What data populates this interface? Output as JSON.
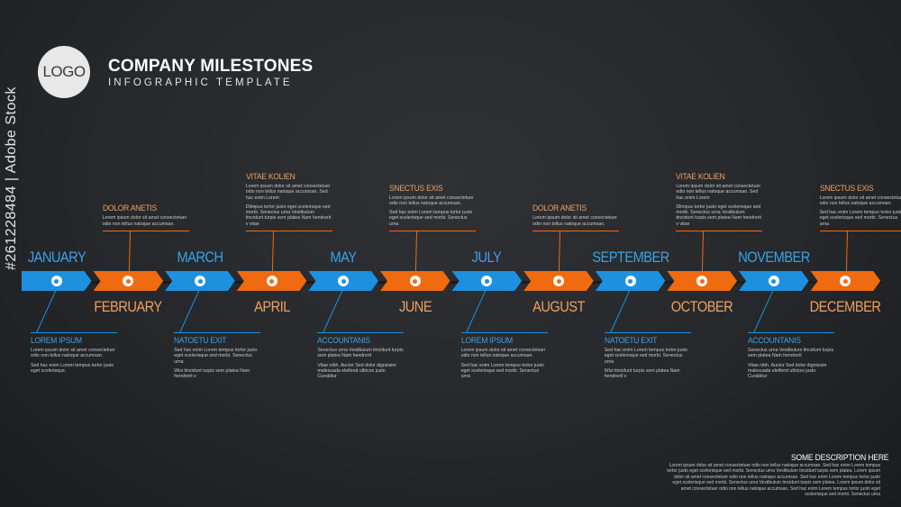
{
  "header": {
    "logo_text": "LOGO",
    "title": "COMPANY MILESTONES",
    "subtitle": "INFOGRAPHIC TEMPLATE"
  },
  "colors": {
    "blue": "#1e90e0",
    "orange": "#f06a10",
    "blue_text": "#3aa2e8",
    "orange_text": "#f0a060"
  },
  "months": [
    {
      "label": "JANUARY",
      "color": "blue"
    },
    {
      "label": "FEBRUARY",
      "color": "orange"
    },
    {
      "label": "MARCH",
      "color": "blue"
    },
    {
      "label": "APRIL",
      "color": "orange"
    },
    {
      "label": "MAY",
      "color": "blue"
    },
    {
      "label": "JUNE",
      "color": "orange"
    },
    {
      "label": "JULY",
      "color": "blue"
    },
    {
      "label": "AUGUST",
      "color": "orange"
    },
    {
      "label": "SEPTEMBER",
      "color": "blue"
    },
    {
      "label": "OCTOBER",
      "color": "orange"
    },
    {
      "label": "NOVEMBER",
      "color": "blue"
    },
    {
      "label": "DECEMBER",
      "color": "orange"
    }
  ],
  "callouts": [
    {
      "month": "JANUARY",
      "position": "below",
      "heading": "LOREM IPSUM",
      "p1": "Lorem ipsum dolor sit amet consectetuer odio non tellus natoque accumsan.",
      "p2": "Sed hac enim Lorem tempus tortor justo eget scelerisque."
    },
    {
      "month": "FEBRUARY",
      "position": "above",
      "heading": "DOLOR ANETIS",
      "p1": "Lorem ipsum dolor sit amet consectetuer odio non tellus natoque accumsan.",
      "p2": ""
    },
    {
      "month": "MARCH",
      "position": "below",
      "heading": "NATOETU EXIT",
      "p1": "Sed hac enim Lorem tempus tortor justo eget scelerisque sed morbi. Senectus urna",
      "p2": "Wisi tincidunt turpis sem platea Nam hendrerit v"
    },
    {
      "month": "APRIL",
      "position": "above",
      "heading": "VITAE KOLIEN",
      "p1": "Lorem ipsum dolor sit amet consectetuer odio non tellus natoque accumsan. Sed hac enim Lorem",
      "p2": "Dlimpus tortor justo eget scelerisque sed morbi. Senectus urna Vestibulum tincidunt turpis sem platea Nam hendrerit v vitae"
    },
    {
      "month": "MAY",
      "position": "below",
      "heading": "ACCOUNTANIS",
      "p1": "Senectus urna Vestibulum tincidunt turpis sem platea Nam hendrerit",
      "p2": "Vitae nibh. Auctor Sed dolor dignissim malesuada eleifend ultrices justo Curabitur"
    },
    {
      "month": "JUNE",
      "position": "above",
      "heading": "SNECTUS EXIS",
      "p1": "Lorem ipsum dolor sit amet consectetuer odio non tellus natoque accumsan.",
      "p2": "Sed hac enim Lorem tempus tortor justo eget scelerisque sed morbi. Senectus urna"
    },
    {
      "month": "JULY",
      "position": "below",
      "heading": "LOREM IPSUM",
      "p1": "Lorem ipsum dolor sit amet consectetuer odio non tellus natoque accumsan.",
      "p2": "Sed hac enim Lorem tempus tortor justo eget scelerisque sed morbi. Senectus urna"
    },
    {
      "month": "AUGUST",
      "position": "above",
      "heading": "DOLOR ANETIS",
      "p1": "Lorem ipsum dolor sit amet consectetuer odio non tellus natoque accumsan.",
      "p2": ""
    },
    {
      "month": "SEPTEMBER",
      "position": "below",
      "heading": "NATOETU EXIT",
      "p1": "Sed hac enim Lorem tempus tortor justo eget scelerisque sed morbi. Senectus urna",
      "p2": "Wisi tincidunt turpis sem platea Nam hendrerit v"
    },
    {
      "month": "OCTOBER",
      "position": "above",
      "heading": "VITAE KOLIEN",
      "p1": "Lorem ipsum dolor sit amet consectetuer odio non tellus natoque accumsan. Sed hac enim Lorem",
      "p2": "Dlimpus tortor justo eget scelerisque sed morbi. Senectus urna Vestibulum tincidunt turpis sem platea Nam hendrerit v vitae"
    },
    {
      "month": "NOVEMBER",
      "position": "below",
      "heading": "ACCOUNTANIS",
      "p1": "Senectus urna Vestibulum tincidunt turpis sem platea Nam hendrerit",
      "p2": "Vitae nibh. Auctor Sed dolor dignissim malesuada eleifend ultrices justo Curabitur"
    },
    {
      "month": "DECEMBER",
      "position": "above",
      "heading": "SNECTUS EXIS",
      "p1": "Lorem ipsum dolor sit amet consectetuer odio non tellus natoque accumsan.",
      "p2": "Sed hac enim Lorem tempus tortor justo eget scelerisque sed morbi. Senectus urna"
    }
  ],
  "footer": {
    "heading": "SOME DESCRIPTION HERE",
    "text": "Lorem ipsum dolor sit amet consectetuer odio non tellus natoque accumsan. Sed hac enim Lorem tempus tortor justo eget scelerisque sed morbi. Senectus urna Vestibulum tincidunt turpis sem platea. Lorem ipsum dolor sit amet consectetuer odio non tellus natoque accumsan. Sed hac enim Lorem tempus tortor justo eget scelerisque sed morbi. Senectus urna Vestibulum tincidunt turpis sem platea. Lorem ipsum dolor sit amet consectetuer odio non tellus natoque accumsan. Sed hac enim Lorem tempus tortor justo eget scelerisque sed morbi. Senectus urna"
  },
  "side_id": "#261228484 | Adobe Stock"
}
